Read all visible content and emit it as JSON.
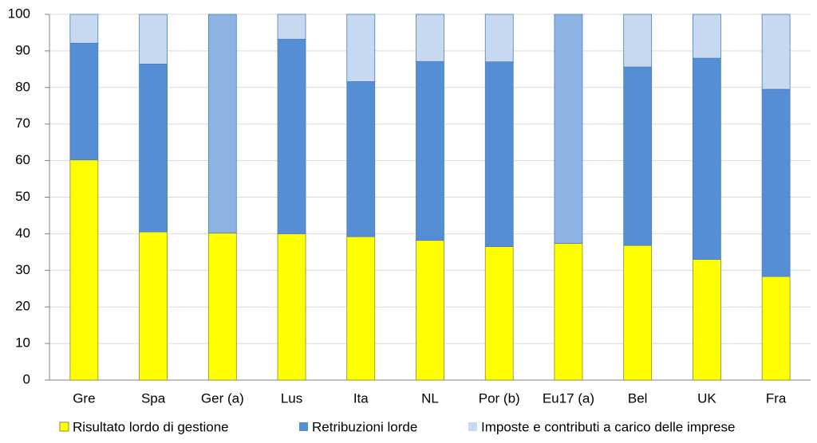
{
  "chart_data": {
    "type": "stacked-bar",
    "categories": [
      "Gre",
      "Spa",
      "Ger (a)",
      "Lus",
      "Ita",
      "NL",
      "Por (b)",
      "Eu17 (a)",
      "Bel",
      "UK",
      "Fra"
    ],
    "series": [
      {
        "name": "Risultato lordo di gestione",
        "color": "#ffff00",
        "values": [
          60.2,
          40.5,
          40.2,
          40,
          39.2,
          38.2,
          36.5,
          37.4,
          36.8,
          33,
          28.3
        ]
      },
      {
        "name": "Retribuzioni lorde",
        "color": "#558ed5",
        "values": [
          31.9,
          45.9,
          59.8,
          53.2,
          42.4,
          48.9,
          50.5,
          62.6,
          48.8,
          55,
          51.2
        ],
        "colors": [
          "#558ed5",
          "#558ed5",
          "#8db3e2",
          "#558ed5",
          "#558ed5",
          "#558ed5",
          "#558ed5",
          "#8db3e2",
          "#558ed5",
          "#558ed5",
          "#558ed5"
        ]
      },
      {
        "name": "Imposte e contributi a carico delle imprese",
        "color": "#c6d9f1",
        "values": [
          7.9,
          13.6,
          null,
          6.8,
          18.4,
          12.9,
          13,
          null,
          14.4,
          12,
          20.5
        ]
      }
    ],
    "ylim": [
      0,
      100
    ],
    "yticks": [
      0,
      10,
      20,
      30,
      40,
      50,
      60,
      70,
      80,
      90,
      100
    ],
    "grid": true,
    "legend": "bottom"
  }
}
